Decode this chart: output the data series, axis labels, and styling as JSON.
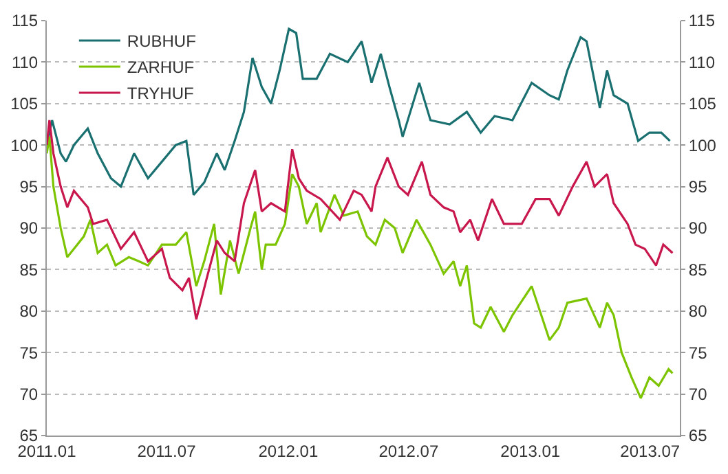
{
  "chart_data": {
    "type": "line",
    "xlim": [
      "2011-01-01",
      "2013-08-15"
    ],
    "xticks": [
      {
        "value": "2011-01-01",
        "label": "2011.01"
      },
      {
        "value": "2011-07-01",
        "label": "2011.07"
      },
      {
        "value": "2012-01-01",
        "label": "2012.01"
      },
      {
        "value": "2012-07-01",
        "label": "2012.07"
      },
      {
        "value": "2013-01-01",
        "label": "2013.01"
      },
      {
        "value": "2013-07-01",
        "label": "2013.07"
      }
    ],
    "ylim": [
      65,
      115
    ],
    "yticks": [
      65,
      70,
      75,
      80,
      85,
      90,
      95,
      100,
      105,
      110,
      115
    ],
    "y2lim": [
      65,
      115
    ],
    "y2ticks": [
      65,
      70,
      75,
      80,
      85,
      90,
      95,
      100,
      105,
      110,
      115
    ],
    "grid": "y",
    "legend": "top left",
    "marker": "none",
    "line_style": "solid",
    "series": [
      {
        "name": "RUBHUF",
        "color": "#1a7070",
        "x": [
          "2011-01-01",
          "2011-01-09",
          "2011-01-22",
          "2011-01-30",
          "2011-02-11",
          "2011-03-04",
          "2011-03-19",
          "2011-04-08",
          "2011-04-23",
          "2011-05-13",
          "2011-06-03",
          "2011-06-24",
          "2011-07-15",
          "2011-07-31",
          "2011-08-11",
          "2011-08-27",
          "2011-09-15",
          "2011-09-27",
          "2011-10-12",
          "2011-10-26",
          "2011-11-08",
          "2011-11-22",
          "2011-12-06",
          "2011-12-19",
          "2012-01-02",
          "2012-01-13",
          "2012-01-23",
          "2012-02-13",
          "2012-03-04",
          "2012-03-31",
          "2012-04-21",
          "2012-05-06",
          "2012-05-20",
          "2012-06-02",
          "2012-06-16",
          "2012-06-22",
          "2012-07-17",
          "2012-08-03",
          "2012-09-01",
          "2012-09-27",
          "2012-10-18",
          "2012-11-08",
          "2012-12-05",
          "2013-01-03",
          "2013-01-30",
          "2013-02-13",
          "2013-02-26",
          "2013-03-18",
          "2013-03-27",
          "2013-04-16",
          "2013-04-27",
          "2013-05-07",
          "2013-05-28",
          "2013-06-13",
          "2013-06-30",
          "2013-07-18",
          "2013-07-31"
        ],
        "values": [
          100,
          103,
          99,
          98,
          100,
          102,
          99,
          96,
          95,
          99,
          96,
          98,
          100,
          100.5,
          94,
          95.5,
          99,
          97,
          100.5,
          104,
          110.5,
          107,
          105,
          109,
          114,
          113.5,
          108,
          108,
          111,
          110,
          112.5,
          107.5,
          111,
          107,
          103,
          101,
          107.5,
          103,
          102.5,
          104,
          101.5,
          103.5,
          103,
          107.5,
          106,
          105.5,
          109,
          113,
          112.5,
          104.5,
          109,
          106,
          105,
          100.5,
          101.5,
          101.5,
          100.5
        ]
      },
      {
        "name": "ZARHUF",
        "color": "#7dc400",
        "x": [
          "2011-01-01",
          "2011-01-05",
          "2011-01-11",
          "2011-01-22",
          "2011-02-01",
          "2011-02-11",
          "2011-02-26",
          "2011-03-08",
          "2011-03-19",
          "2011-04-02",
          "2011-04-15",
          "2011-05-05",
          "2011-05-20",
          "2011-06-03",
          "2011-06-24",
          "2011-07-15",
          "2011-07-31",
          "2011-08-15",
          "2011-08-27",
          "2011-09-11",
          "2011-09-21",
          "2011-10-05",
          "2011-10-18",
          "2011-11-05",
          "2011-11-12",
          "2011-11-22",
          "2011-11-28",
          "2011-12-13",
          "2011-12-27",
          "2012-01-07",
          "2012-01-17",
          "2012-01-29",
          "2012-02-13",
          "2012-02-19",
          "2012-03-11",
          "2012-03-25",
          "2012-04-15",
          "2012-04-29",
          "2012-05-12",
          "2012-05-26",
          "2012-06-10",
          "2012-06-22",
          "2012-07-13",
          "2012-08-03",
          "2012-08-23",
          "2012-09-07",
          "2012-09-17",
          "2012-09-27",
          "2012-10-08",
          "2012-10-18",
          "2012-11-02",
          "2012-11-22",
          "2012-12-05",
          "2013-01-03",
          "2013-01-30",
          "2013-02-13",
          "2013-02-26",
          "2013-03-27",
          "2013-04-16",
          "2013-04-27",
          "2013-05-07",
          "2013-05-19",
          "2013-06-03",
          "2013-06-17",
          "2013-06-30",
          "2013-07-14",
          "2013-07-29",
          "2013-08-04"
        ],
        "values": [
          99,
          101,
          95,
          90,
          86.5,
          87.5,
          89,
          91,
          87,
          88,
          85.5,
          86.5,
          86,
          85.5,
          88,
          88,
          89.5,
          83,
          86,
          90.5,
          82,
          88.5,
          84.5,
          90,
          92,
          85,
          88,
          88,
          90.5,
          96.5,
          95,
          90.5,
          93,
          89.5,
          94,
          91.5,
          92,
          89,
          88,
          91,
          90,
          87,
          91,
          88,
          84.5,
          86,
          83,
          85.5,
          78.5,
          78,
          80.5,
          77.5,
          79.5,
          83,
          76.5,
          78,
          81,
          81.5,
          78,
          81,
          79.5,
          75,
          72,
          69.5,
          72,
          71,
          73,
          72.5
        ]
      },
      {
        "name": "TRYHUF",
        "color": "#c8174c",
        "x": [
          "2011-01-01",
          "2011-01-05",
          "2011-01-11",
          "2011-01-22",
          "2011-02-01",
          "2011-02-11",
          "2011-03-04",
          "2011-03-12",
          "2011-04-02",
          "2011-04-23",
          "2011-05-13",
          "2011-06-03",
          "2011-06-24",
          "2011-07-06",
          "2011-07-25",
          "2011-08-04",
          "2011-08-15",
          "2011-08-31",
          "2011-09-15",
          "2011-09-27",
          "2011-10-12",
          "2011-10-26",
          "2011-11-12",
          "2011-11-22",
          "2011-12-06",
          "2011-12-27",
          "2012-01-07",
          "2012-01-17",
          "2012-01-29",
          "2012-02-19",
          "2012-03-19",
          "2012-04-09",
          "2012-04-21",
          "2012-05-06",
          "2012-05-12",
          "2012-05-30",
          "2012-06-16",
          "2012-06-30",
          "2012-07-21",
          "2012-08-03",
          "2012-08-23",
          "2012-09-07",
          "2012-09-17",
          "2012-10-02",
          "2012-10-14",
          "2012-11-04",
          "2012-11-22",
          "2012-12-19",
          "2013-01-09",
          "2013-01-30",
          "2013-02-13",
          "2013-03-06",
          "2013-03-27",
          "2013-04-08",
          "2013-04-27",
          "2013-05-07",
          "2013-05-28",
          "2013-06-09",
          "2013-06-23",
          "2013-07-10",
          "2013-07-21",
          "2013-08-04"
        ],
        "values": [
          100,
          103,
          99,
          95,
          92.5,
          94.5,
          92.5,
          90.5,
          91,
          87.5,
          89.5,
          86,
          87.5,
          84,
          82.5,
          84,
          79,
          84,
          88.5,
          87,
          86,
          93,
          97,
          92,
          93,
          92,
          99.5,
          96,
          94.5,
          93.5,
          91,
          94.5,
          94,
          92,
          95,
          98.5,
          95,
          94,
          98,
          94,
          92.5,
          92,
          89.5,
          91,
          88.5,
          93.5,
          90.5,
          90.5,
          93.5,
          93.5,
          91.5,
          95,
          98,
          95,
          96.5,
          93,
          90.5,
          88,
          87.5,
          85.5,
          88,
          87
        ]
      }
    ]
  }
}
